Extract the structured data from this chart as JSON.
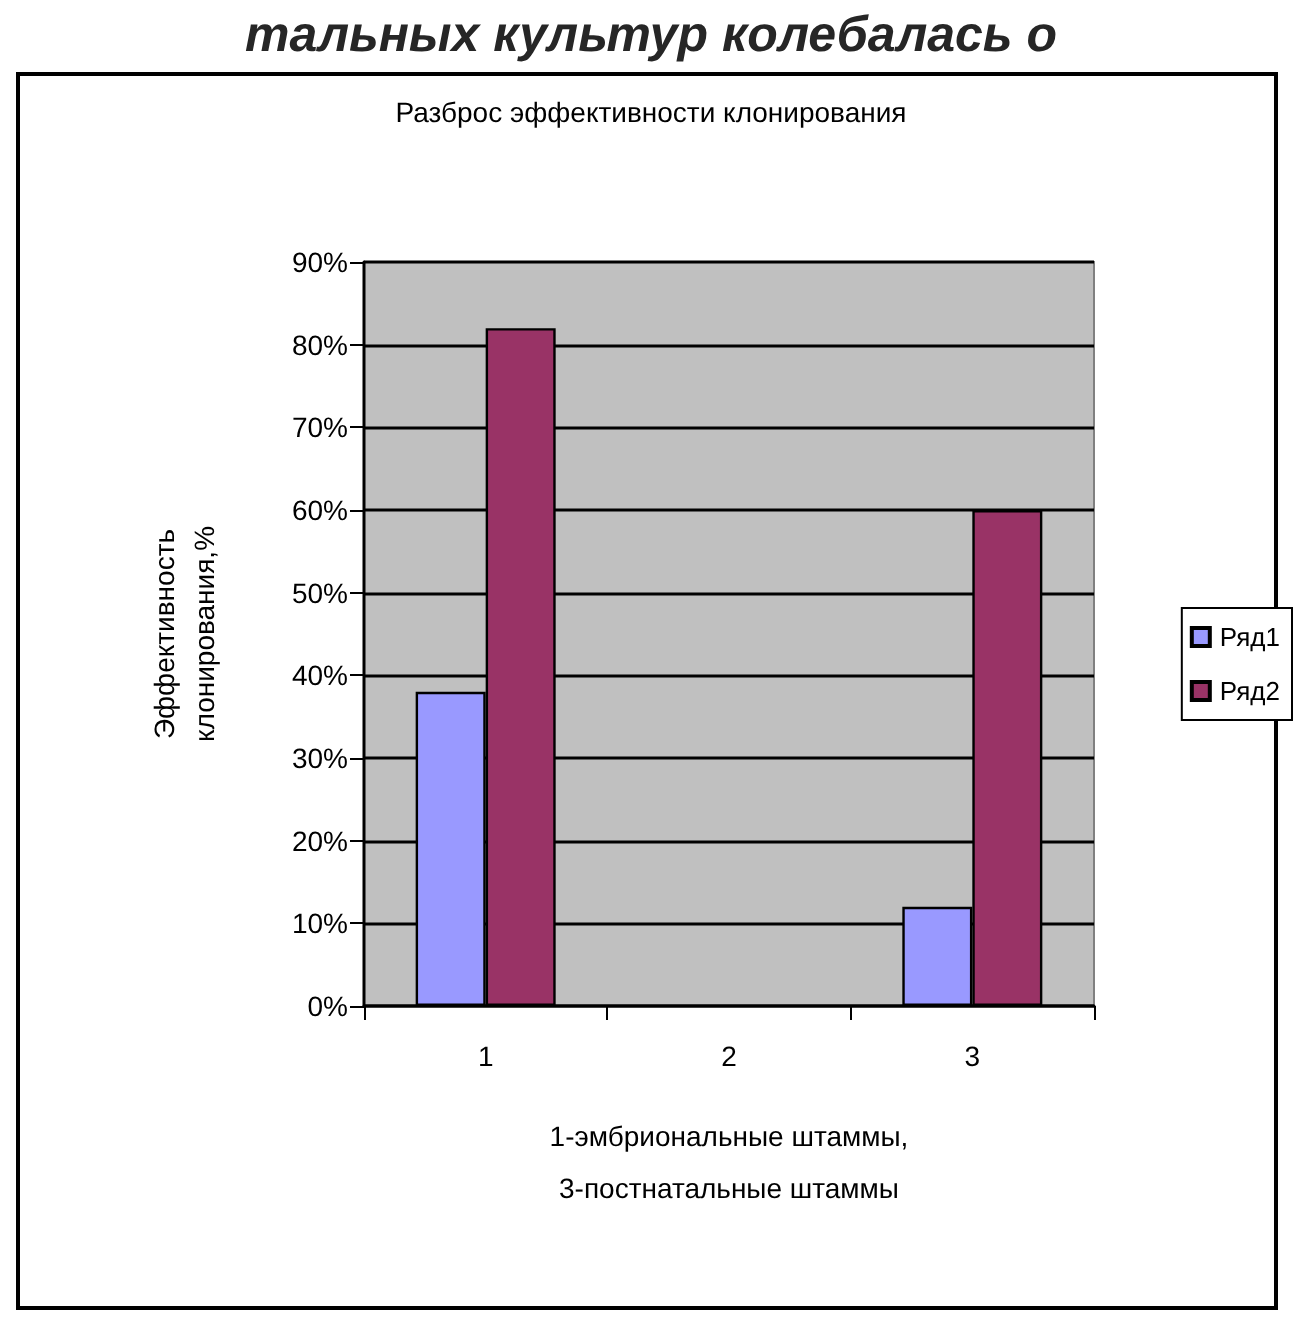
{
  "chart_data": {
    "type": "bar",
    "title": "Разброс эффективности клонирования",
    "annotations": [
      "тальных культур колебалась о"
    ],
    "xlabel": "1-эмбриональные штаммы,\n3-постнатальные штаммы",
    "ylabel": "Эффективность\nклонирования,%",
    "categories": [
      "1",
      "2",
      "3"
    ],
    "series": [
      {
        "name": "Ряд1",
        "color": "#9999ff",
        "values": [
          38,
          null,
          12
        ]
      },
      {
        "name": "Ряд2",
        "color": "#993366",
        "values": [
          82,
          null,
          60
        ]
      }
    ],
    "ylim": [
      0,
      90
    ],
    "yticks": [
      {
        "value": 0,
        "label": "0%"
      },
      {
        "value": 10,
        "label": "10%"
      },
      {
        "value": 20,
        "label": "20%"
      },
      {
        "value": 30,
        "label": "30%"
      },
      {
        "value": 40,
        "label": "40%"
      },
      {
        "value": 50,
        "label": "50%"
      },
      {
        "value": 60,
        "label": "60%"
      },
      {
        "value": 70,
        "label": "70%"
      },
      {
        "value": 80,
        "label": "80%"
      },
      {
        "value": 90,
        "label": "90%"
      }
    ],
    "grid": "y",
    "legend": "right"
  }
}
